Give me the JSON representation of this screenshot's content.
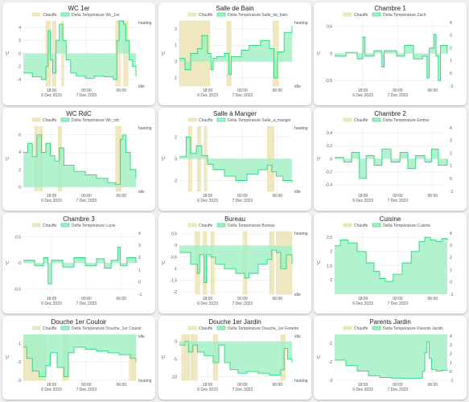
{
  "colors": {
    "heat_fill": "#eee7bf",
    "heat_stroke": "#e9dca0",
    "delta_fill": "#a4f0c7",
    "delta_line": "#22d779",
    "grid": "#e5e5e5"
  },
  "legend": {
    "heat_label": "Chauffe"
  },
  "x_ticks": [
    {
      "l1": "18:00",
      "l2": "6 Dec 2023"
    },
    {
      "l1": "00:00",
      "l2": "7 Dec 2023"
    },
    {
      "l1": "06:00",
      "l2": ""
    }
  ],
  "chart_data": [
    {
      "type": "line",
      "title": "WC 1er",
      "series": [
        {
          "name": "Chauffe"
        },
        {
          "name": "Delta Température Wc_1er"
        }
      ],
      "ylabel": "°C",
      "ylim": [
        -5,
        5
      ],
      "yticks": [
        -4,
        -2,
        0,
        2,
        4
      ],
      "y2ticks": [
        "heating",
        "idle"
      ],
      "heat": [
        [
          0.2,
          0.24
        ],
        [
          0.26,
          0.29
        ],
        [
          0.34,
          0.36
        ],
        [
          0.82,
          0.86
        ],
        [
          0.89,
          0.93
        ]
      ],
      "delta": [
        [
          0,
          -3
        ],
        [
          0.08,
          -3.6
        ],
        [
          0.16,
          -4
        ],
        [
          0.2,
          -2
        ],
        [
          0.22,
          3.5
        ],
        [
          0.24,
          -1
        ],
        [
          0.26,
          -3
        ],
        [
          0.29,
          2
        ],
        [
          0.32,
          4.5
        ],
        [
          0.35,
          2
        ],
        [
          0.38,
          -1
        ],
        [
          0.42,
          -3
        ],
        [
          0.47,
          -3.5
        ],
        [
          0.55,
          -3.8
        ],
        [
          0.63,
          -3.5
        ],
        [
          0.72,
          -3.6
        ],
        [
          0.8,
          -4
        ],
        [
          0.83,
          2
        ],
        [
          0.85,
          5
        ],
        [
          0.89,
          4.5
        ],
        [
          0.91,
          2
        ],
        [
          0.94,
          -1
        ],
        [
          0.97,
          -2
        ],
        [
          1,
          -3.5
        ]
      ]
    },
    {
      "type": "line",
      "title": "Salle de Bain",
      "series": [
        {
          "name": "Chauffe"
        },
        {
          "name": "Delta Température Salle_de_bain"
        }
      ],
      "ylabel": "°C",
      "ylim": [
        -1.5,
        2.5
      ],
      "yticks": [
        -1,
        0,
        1,
        2
      ],
      "y2ticks": [
        "heating",
        "idle"
      ],
      "heat": [
        [
          0,
          0.27
        ],
        [
          0.42,
          0.46
        ],
        [
          0.83,
          0.88
        ]
      ],
      "delta": [
        [
          0,
          0.2
        ],
        [
          0.05,
          -0.5
        ],
        [
          0.1,
          0.5
        ],
        [
          0.16,
          0.8
        ],
        [
          0.2,
          1.6
        ],
        [
          0.25,
          0.5
        ],
        [
          0.28,
          -0.5
        ],
        [
          0.3,
          0.2
        ],
        [
          0.33,
          0.3
        ],
        [
          0.4,
          0.5
        ],
        [
          0.44,
          -0.8
        ],
        [
          0.46,
          0.3
        ],
        [
          0.55,
          0.7
        ],
        [
          0.62,
          1
        ],
        [
          0.72,
          1.3
        ],
        [
          0.8,
          0.8
        ],
        [
          0.84,
          -1
        ],
        [
          0.87,
          0.6
        ],
        [
          0.93,
          1.8
        ],
        [
          1,
          2.2
        ]
      ]
    },
    {
      "type": "line",
      "title": "Chambre 1",
      "series": [
        {
          "name": "Chauffe"
        },
        {
          "name": "Delta Température Zach"
        }
      ],
      "ylabel": "°C",
      "ylim": [
        -0.6,
        0.6
      ],
      "yticks": [
        -0.5,
        0,
        0.5
      ],
      "y2ticks": [
        "4",
        "3",
        "2",
        "1",
        "0",
        "-1"
      ],
      "heat": [],
      "delta": [
        [
          0,
          -0.05
        ],
        [
          0.1,
          0.02
        ],
        [
          0.2,
          -0.1
        ],
        [
          0.25,
          0.3
        ],
        [
          0.27,
          -0.05
        ],
        [
          0.35,
          0.05
        ],
        [
          0.42,
          -0.25
        ],
        [
          0.44,
          0.05
        ],
        [
          0.55,
          -0.05
        ],
        [
          0.62,
          0.15
        ],
        [
          0.7,
          -0.1
        ],
        [
          0.78,
          -0.05
        ],
        [
          0.82,
          -0.45
        ],
        [
          0.84,
          0.1
        ],
        [
          0.88,
          0.35
        ],
        [
          0.9,
          -0.05
        ],
        [
          0.92,
          -0.5
        ],
        [
          0.94,
          0.15
        ],
        [
          1,
          0
        ]
      ]
    },
    {
      "type": "line",
      "title": "WC RdC",
      "series": [
        {
          "name": "Chauffe"
        },
        {
          "name": "Delta Température Wc_rdc"
        }
      ],
      "ylabel": "°C",
      "ylim": [
        -0.5,
        7
      ],
      "yticks": [
        0,
        2,
        4,
        6
      ],
      "y2ticks": [
        "heating",
        "idle"
      ],
      "heat": [
        [
          0.1,
          0.13
        ],
        [
          0.14,
          0.17
        ],
        [
          0.31,
          0.34
        ],
        [
          0.82,
          0.87
        ]
      ],
      "delta": [
        [
          0,
          4
        ],
        [
          0.04,
          5
        ],
        [
          0.08,
          3.5
        ],
        [
          0.12,
          6
        ],
        [
          0.16,
          4
        ],
        [
          0.2,
          5
        ],
        [
          0.24,
          3.6
        ],
        [
          0.28,
          3
        ],
        [
          0.32,
          4.5
        ],
        [
          0.36,
          2.5
        ],
        [
          0.45,
          1.8
        ],
        [
          0.55,
          1.4
        ],
        [
          0.65,
          1
        ],
        [
          0.75,
          0.5
        ],
        [
          0.82,
          0.3
        ],
        [
          0.86,
          5.5
        ],
        [
          0.88,
          6
        ],
        [
          0.91,
          4
        ],
        [
          0.95,
          2
        ],
        [
          1,
          1
        ]
      ]
    },
    {
      "type": "line",
      "title": "Salle à Manger",
      "series": [
        {
          "name": "Chauffe"
        },
        {
          "name": "Delta Température Salle_a_manger"
        }
      ],
      "ylabel": "°C",
      "ylim": [
        -3,
        3
      ],
      "yticks": [
        -2,
        0,
        2
      ],
      "y2ticks": [
        "heating",
        "idle"
      ],
      "heat": [
        [
          0.08,
          0.11
        ],
        [
          0.16,
          0.19
        ],
        [
          0.22,
          0.24
        ],
        [
          0.78,
          0.84
        ]
      ],
      "delta": [
        [
          0,
          0.2
        ],
        [
          0.06,
          2
        ],
        [
          0.1,
          0.5
        ],
        [
          0.15,
          1.2
        ],
        [
          0.2,
          0.3
        ],
        [
          0.25,
          -0.5
        ],
        [
          0.3,
          -1
        ],
        [
          0.4,
          -1.6
        ],
        [
          0.5,
          -2
        ],
        [
          0.6,
          -1.4
        ],
        [
          0.7,
          -1
        ],
        [
          0.78,
          -0.6
        ],
        [
          0.82,
          -1.2
        ],
        [
          0.86,
          -1.6
        ],
        [
          0.92,
          -2
        ],
        [
          1,
          -2.2
        ]
      ]
    },
    {
      "type": "line",
      "title": "Chambre 2",
      "series": [
        {
          "name": "Chauffe"
        },
        {
          "name": "Delta Température Emma"
        }
      ],
      "ylabel": "°C",
      "ylim": [
        -0.5,
        0.5
      ],
      "yticks": [
        -0.4,
        -0.2,
        0,
        0.2,
        0.4
      ],
      "y2ticks": [
        "4",
        "3",
        "2",
        "1",
        "0",
        "-1"
      ],
      "heat": [],
      "delta": [
        [
          0,
          0.02
        ],
        [
          0.08,
          -0.05
        ],
        [
          0.15,
          0.1
        ],
        [
          0.22,
          -0.3
        ],
        [
          0.28,
          0.05
        ],
        [
          0.35,
          -0.1
        ],
        [
          0.42,
          0.15
        ],
        [
          0.5,
          -0.05
        ],
        [
          0.58,
          0.1
        ],
        [
          0.65,
          -0.15
        ],
        [
          0.72,
          0.05
        ],
        [
          0.8,
          -0.05
        ],
        [
          0.86,
          0.15
        ],
        [
          0.92,
          -0.1
        ],
        [
          1,
          0
        ]
      ]
    },
    {
      "type": "line",
      "title": "Chambre 3",
      "series": [
        {
          "name": "Chauffe"
        },
        {
          "name": "Delta Température Lucie"
        }
      ],
      "ylabel": "°C",
      "ylim": [
        -0.6,
        0.6
      ],
      "yticks": [
        -0.5,
        0,
        0.5
      ],
      "y2ticks": [
        "4",
        "3",
        "2",
        "1",
        "0",
        "-1"
      ],
      "heat": [],
      "delta": [
        [
          0,
          0.05
        ],
        [
          0.1,
          -0.05
        ],
        [
          0.18,
          0.1
        ],
        [
          0.22,
          -0.4
        ],
        [
          0.25,
          0.05
        ],
        [
          0.35,
          -0.08
        ],
        [
          0.45,
          0.1
        ],
        [
          0.55,
          -0.05
        ],
        [
          0.65,
          0.08
        ],
        [
          0.72,
          -0.1
        ],
        [
          0.78,
          0.05
        ],
        [
          0.84,
          0.3
        ],
        [
          0.86,
          -0.05
        ],
        [
          0.92,
          0.1
        ],
        [
          1,
          0
        ]
      ]
    },
    {
      "type": "line",
      "title": "Bureau",
      "series": [
        {
          "name": "Chauffe"
        },
        {
          "name": "Delta Température Bureau"
        }
      ],
      "ylabel": "°C",
      "ylim": [
        -2.1,
        0.6
      ],
      "yticks": [
        0.5,
        0,
        -0.5,
        -1,
        -1.5,
        -2
      ],
      "y2ticks": [
        "heating",
        "idle"
      ],
      "heat": [
        [
          0.14,
          0.18
        ],
        [
          0.21,
          0.24
        ],
        [
          0.28,
          0.31
        ],
        [
          0.57,
          0.6
        ],
        [
          0.8,
          0.84
        ],
        [
          0.86,
          1
        ]
      ],
      "delta": [
        [
          0,
          -0.3
        ],
        [
          0.1,
          -0.8
        ],
        [
          0.16,
          -1.2
        ],
        [
          0.18,
          -0.4
        ],
        [
          0.22,
          -1.6
        ],
        [
          0.24,
          -0.4
        ],
        [
          0.28,
          -0.5
        ],
        [
          0.32,
          -0.8
        ],
        [
          0.4,
          -1
        ],
        [
          0.5,
          -1.2
        ],
        [
          0.58,
          -1.4
        ],
        [
          0.62,
          -1.2
        ],
        [
          0.7,
          -0.8
        ],
        [
          0.78,
          -0.6
        ],
        [
          0.82,
          -0.2
        ],
        [
          0.86,
          -0.3
        ],
        [
          0.9,
          -1
        ],
        [
          0.95,
          -0.4
        ],
        [
          1,
          -0.8
        ]
      ]
    },
    {
      "type": "area",
      "title": "Cuisine",
      "series": [
        {
          "name": "Chauffe"
        },
        {
          "name": "Delta Température Cuisine"
        }
      ],
      "ylabel": "°C",
      "ylim": [
        0.5,
        2.7
      ],
      "yticks": [
        1,
        1.5,
        2,
        2.5
      ],
      "y2ticks": [
        "4",
        "3",
        "2",
        "1",
        "0",
        "-1"
      ],
      "heat": [],
      "delta": [
        [
          0,
          2.2
        ],
        [
          0.05,
          2.4
        ],
        [
          0.12,
          2.3
        ],
        [
          0.2,
          2
        ],
        [
          0.28,
          1.6
        ],
        [
          0.35,
          1.3
        ],
        [
          0.4,
          1.05
        ],
        [
          0.45,
          0.95
        ],
        [
          0.52,
          1.2
        ],
        [
          0.6,
          1.6
        ],
        [
          0.68,
          2
        ],
        [
          0.75,
          2.35
        ],
        [
          0.8,
          2.5
        ],
        [
          0.85,
          2.4
        ],
        [
          0.9,
          2.35
        ],
        [
          0.95,
          2.45
        ],
        [
          1,
          2.4
        ]
      ]
    },
    {
      "type": "line",
      "title": "Douche 1er Couloir",
      "series": [
        {
          "name": "Chauffe"
        },
        {
          "name": "Delta Température Douche_1er Couloir"
        }
      ],
      "ylabel": "°C",
      "ylim": [
        -3,
        -0.5
      ],
      "yticks": [
        -1,
        -2,
        -3
      ],
      "y2ticks": [
        "idle",
        "heating"
      ],
      "heat": [
        [
          0,
          0.2
        ],
        [
          0.35,
          0.4
        ],
        [
          0.94,
          1
        ]
      ],
      "delta": [
        [
          0,
          -1.2
        ],
        [
          0.03,
          -1.8
        ],
        [
          0.08,
          -2.5
        ],
        [
          0.14,
          -2.8
        ],
        [
          0.2,
          -2.2
        ],
        [
          0.24,
          -1.5
        ],
        [
          0.3,
          -2.3
        ],
        [
          0.36,
          -2.8
        ],
        [
          0.4,
          -1.5
        ],
        [
          0.45,
          -1.2
        ],
        [
          0.55,
          -1.3
        ],
        [
          0.65,
          -1.4
        ],
        [
          0.75,
          -1.5
        ],
        [
          0.85,
          -1.6
        ],
        [
          0.95,
          -1.8
        ],
        [
          1,
          -2
        ]
      ]
    },
    {
      "type": "line",
      "title": "Douche 1er Jardin",
      "series": [
        {
          "name": "Chauffe"
        },
        {
          "name": "Delta Température Douche_1er Fenetre"
        }
      ],
      "ylabel": "°C",
      "ylim": [
        -11,
        2
      ],
      "yticks": [
        0,
        -5,
        -10
      ],
      "y2ticks": [
        "idle",
        "heating"
      ],
      "heat": [
        [
          0.02,
          0.09
        ],
        [
          0.1,
          0.16
        ],
        [
          0.3,
          0.34
        ],
        [
          0.9,
          0.94
        ]
      ],
      "delta": [
        [
          0,
          -1
        ],
        [
          0.05,
          0
        ],
        [
          0.08,
          -3
        ],
        [
          0.12,
          -1
        ],
        [
          0.16,
          -3
        ],
        [
          0.22,
          -4
        ],
        [
          0.3,
          -6
        ],
        [
          0.35,
          -1
        ],
        [
          0.4,
          -6
        ],
        [
          0.45,
          -8
        ],
        [
          0.52,
          -9
        ],
        [
          0.6,
          -8.5
        ],
        [
          0.7,
          -9
        ],
        [
          0.8,
          -9.5
        ],
        [
          0.9,
          -8
        ],
        [
          0.93,
          -2
        ],
        [
          0.96,
          -5
        ],
        [
          1,
          -6
        ]
      ]
    },
    {
      "type": "area",
      "title": "Parents Jardin",
      "series": [
        {
          "name": "Chauffe"
        },
        {
          "name": "Delta Température Parents Jardin"
        }
      ],
      "ylabel": "°C",
      "ylim": [
        -3,
        -0.5
      ],
      "yticks": [
        -1,
        -2,
        -3
      ],
      "y2ticks": [
        "4",
        "3",
        "2",
        "1",
        "0",
        "-1"
      ],
      "heat": [],
      "delta": [
        [
          0,
          -1.9
        ],
        [
          0.1,
          -2.2
        ],
        [
          0.2,
          -2.5
        ],
        [
          0.3,
          -2.75
        ],
        [
          0.4,
          -2.85
        ],
        [
          0.5,
          -2.88
        ],
        [
          0.6,
          -2.9
        ],
        [
          0.7,
          -2.9
        ],
        [
          0.75,
          -2.88
        ],
        [
          0.78,
          -2.5
        ],
        [
          0.8,
          -1.5
        ],
        [
          0.82,
          -0.9
        ],
        [
          0.84,
          -1.8
        ],
        [
          0.86,
          -2.4
        ],
        [
          0.9,
          -2.5
        ],
        [
          0.95,
          -2.45
        ],
        [
          1,
          -2.4
        ]
      ]
    }
  ]
}
